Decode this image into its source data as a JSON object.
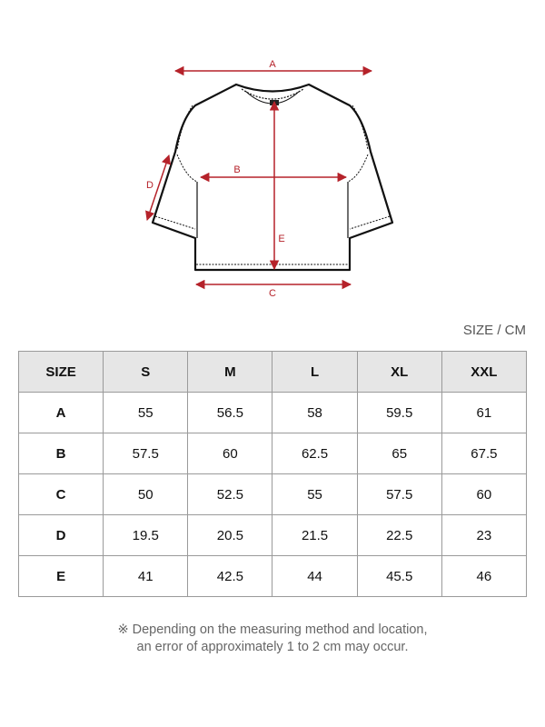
{
  "diagram": {
    "labels": {
      "A": "A",
      "B": "B",
      "C": "C",
      "D": "D",
      "E": "E"
    },
    "arrow_color": "#b5222a"
  },
  "unit_label": "SIZE / CM",
  "table": {
    "headers": [
      "SIZE",
      "S",
      "M",
      "L",
      "XL",
      "XXL"
    ],
    "rows": [
      {
        "label": "A",
        "values": [
          "55",
          "56.5",
          "58",
          "59.5",
          "61"
        ]
      },
      {
        "label": "B",
        "values": [
          "57.5",
          "60",
          "62.5",
          "65",
          "67.5"
        ]
      },
      {
        "label": "C",
        "values": [
          "50",
          "52.5",
          "55",
          "57.5",
          "60"
        ]
      },
      {
        "label": "D",
        "values": [
          "19.5",
          "20.5",
          "21.5",
          "22.5",
          "23"
        ]
      },
      {
        "label": "E",
        "values": [
          "41",
          "42.5",
          "44",
          "45.5",
          "46"
        ]
      }
    ]
  },
  "note": {
    "line1": "※ Depending on the measuring method and location,",
    "line2": "an error of approximately 1 to 2 cm may occur."
  }
}
